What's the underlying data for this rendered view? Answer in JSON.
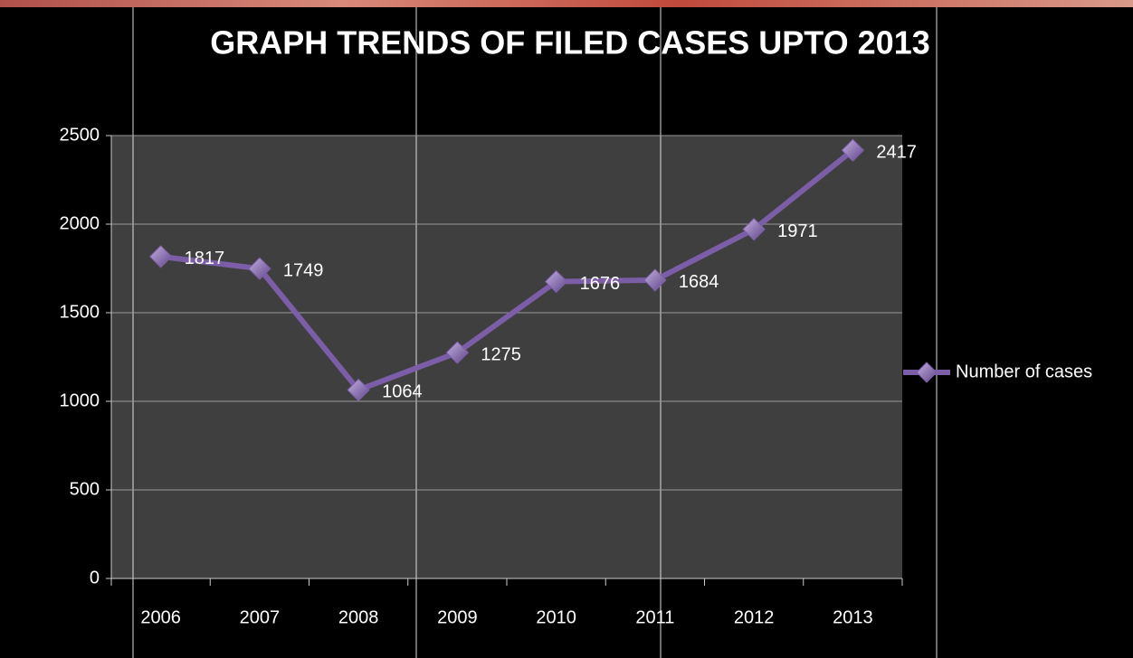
{
  "chart_data": {
    "type": "line",
    "title": "GRAPH TRENDS OF FILED CASES UPTO 2013",
    "categories": [
      "2006",
      "2007",
      "2008",
      "2009",
      "2010",
      "2011",
      "2012",
      "2013"
    ],
    "series": [
      {
        "name": "Number of cases",
        "color": "#7b5ea7",
        "values": [
          1817,
          1749,
          1064,
          1275,
          1676,
          1684,
          1971,
          2417
        ]
      }
    ],
    "ylim": [
      0,
      2500
    ],
    "yticks": [
      0,
      500,
      1000,
      1500,
      2000,
      2500
    ],
    "grid": true,
    "legend": "right"
  }
}
